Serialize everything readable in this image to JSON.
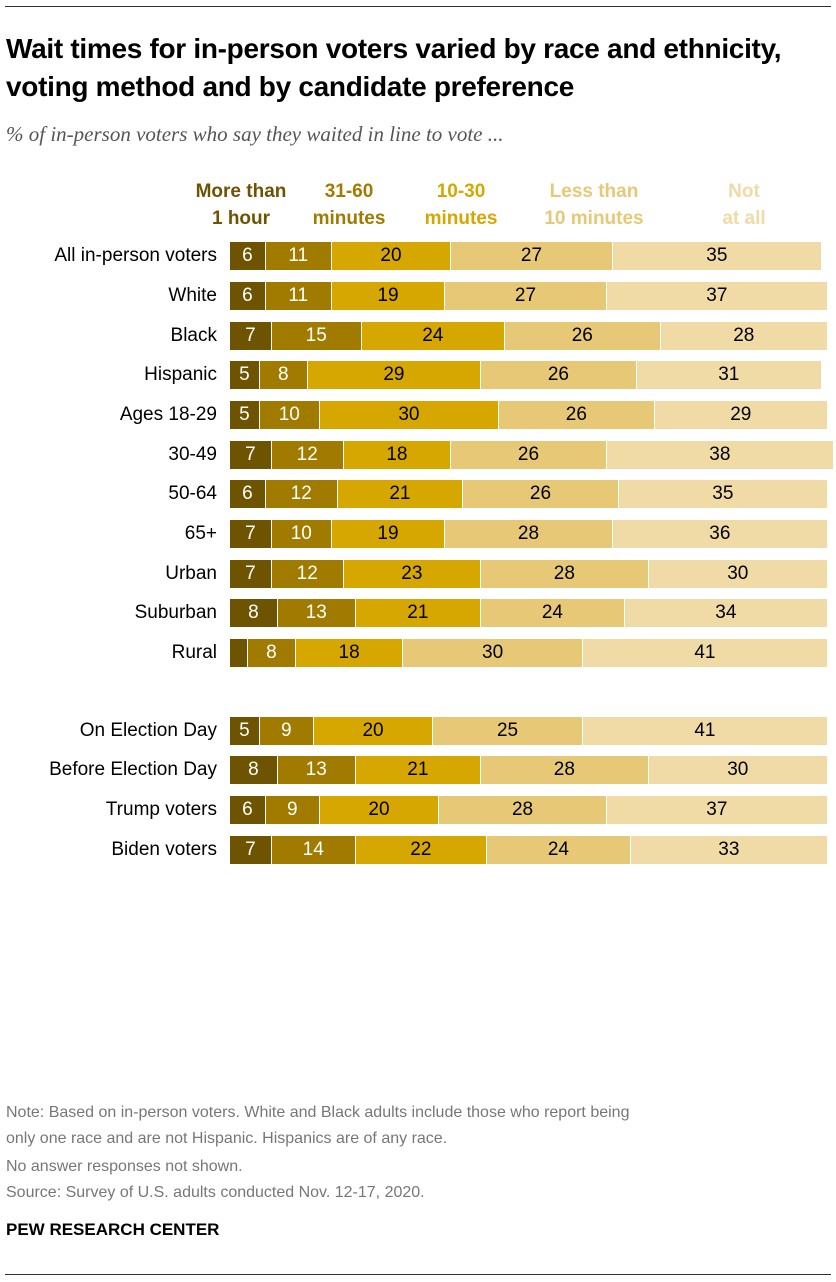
{
  "title": "Wait times for in-person voters varied by race and ethnicity, voting method and by candidate preference",
  "subtitle": "% of in-person voters who say they waited in line to vote ...",
  "chart_data": {
    "type": "bar",
    "orientation": "horizontal-stacked",
    "xlim": [
      0,
      100
    ],
    "legend": [
      {
        "name": "More than 1 hour",
        "line1": "More than",
        "line2": "1 hour",
        "color": "#6e5300"
      },
      {
        "name": "31-60 minutes",
        "line1": "31-60",
        "line2": "minutes",
        "color": "#a07b00"
      },
      {
        "name": "10-30 minutes",
        "line1": "10-30",
        "line2": "minutes",
        "color": "#d6a700"
      },
      {
        "name": "Less than 10 minutes",
        "line1": "Less than",
        "line2": "10 minutes",
        "color": "#e6c877"
      },
      {
        "name": "Not at all",
        "line1": "Not",
        "line2": "at all",
        "color": "#f0dba7"
      }
    ],
    "groups": [
      [
        {
          "label": "All in-person voters",
          "values": [
            6,
            11,
            20,
            27,
            35
          ]
        }
      ],
      [
        {
          "label": "White",
          "values": [
            6,
            11,
            19,
            27,
            37
          ]
        },
        {
          "label": "Black",
          "values": [
            7,
            15,
            24,
            26,
            28
          ]
        },
        {
          "label": "Hispanic",
          "values": [
            5,
            8,
            29,
            26,
            31
          ]
        }
      ],
      [
        {
          "label": "Ages 18-29",
          "values": [
            5,
            10,
            30,
            26,
            29
          ]
        },
        {
          "label": "30-49",
          "values": [
            7,
            12,
            18,
            26,
            38
          ]
        },
        {
          "label": "50-64",
          "values": [
            6,
            12,
            21,
            26,
            35
          ]
        },
        {
          "label": "65+",
          "values": [
            7,
            10,
            19,
            28,
            36
          ]
        }
      ],
      [
        {
          "label": "Urban",
          "values": [
            7,
            12,
            23,
            28,
            30
          ]
        },
        {
          "label": "Suburban",
          "values": [
            8,
            13,
            21,
            24,
            34
          ]
        },
        {
          "label": "Rural",
          "values": [
            3,
            8,
            18,
            30,
            41
          ],
          "hidden_labels": [
            0
          ]
        }
      ],
      [
        {
          "label": "On Election Day",
          "values": [
            5,
            9,
            20,
            25,
            41
          ]
        },
        {
          "label": "Before Election Day",
          "values": [
            8,
            13,
            21,
            28,
            30
          ]
        }
      ],
      [
        {
          "label": "Trump voters",
          "values": [
            6,
            9,
            20,
            28,
            37
          ]
        },
        {
          "label": "Biden voters",
          "values": [
            7,
            14,
            22,
            24,
            33
          ]
        }
      ]
    ]
  },
  "notes": [
    "Note: Based on in-person voters. White and Black adults include those who report being",
    "only one race and are not Hispanic. Hispanics are of any race.",
    "No answer responses not shown.",
    "Source: Survey of U.S. adults conducted Nov. 12-17, 2020."
  ],
  "brand": "PEW RESEARCH CENTER"
}
